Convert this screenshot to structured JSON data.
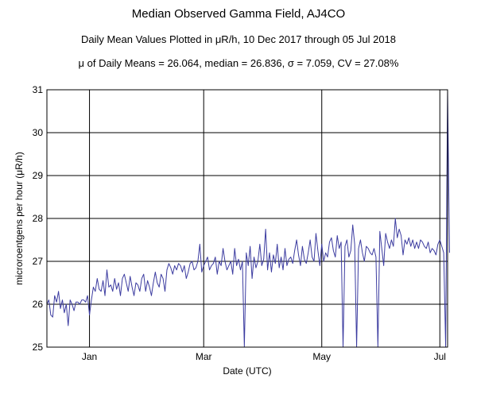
{
  "chart_data": {
    "type": "line",
    "title": "Median Observed Gamma Field, AJ4CO",
    "subtitle": "Daily Mean Values Plotted in μR/h, 10 Dec 2017 through 05 Jul 2018",
    "stats_line": "μ of Daily Means = 26.064,   median = 26.836,   σ = 7.059,   CV = 27.08%",
    "xlabel": "Date (UTC)",
    "ylabel": "microroentgens per hour (μR/h)",
    "x_range": [
      "2017-12-10",
      "2018-07-05"
    ],
    "ylim": [
      25,
      31
    ],
    "y_ticks": [
      25,
      26,
      27,
      28,
      29,
      30,
      31
    ],
    "x_ticks": [
      {
        "date": "2018-01-01",
        "label": "Jan"
      },
      {
        "date": "2018-03-01",
        "label": "Mar"
      },
      {
        "date": "2018-05-01",
        "label": "May"
      },
      {
        "date": "2018-07-01",
        "label": "Jul"
      }
    ],
    "grid": true,
    "line_color": "#3c3ca0",
    "series": [
      {
        "start_date": "2017-12-10",
        "values": [
          26.0,
          26.1,
          25.75,
          25.7,
          26.2,
          26.05,
          26.3,
          25.9,
          26.1,
          25.8,
          26.0,
          25.5,
          26.1,
          26.0,
          25.85,
          26.05,
          26.05,
          26.0,
          26.1,
          26.1,
          26.05,
          26.2,
          25.75,
          26.1,
          26.4,
          26.3,
          26.6,
          26.35,
          26.3,
          26.55,
          26.2,
          26.8,
          26.4,
          26.45,
          26.3,
          26.6,
          26.35,
          26.5,
          26.2,
          26.6,
          26.7,
          26.5,
          26.3,
          26.65,
          26.4,
          26.2,
          26.5,
          26.45,
          26.3,
          26.6,
          26.7,
          26.3,
          26.55,
          26.4,
          26.2,
          26.5,
          26.75,
          26.5,
          26.4,
          26.7,
          26.6,
          26.3,
          26.8,
          26.95,
          26.85,
          26.7,
          26.9,
          26.8,
          26.95,
          26.9,
          26.75,
          26.9,
          26.6,
          26.75,
          26.95,
          27.0,
          26.8,
          26.85,
          27.0,
          27.4,
          26.75,
          26.9,
          27.0,
          27.1,
          26.8,
          26.9,
          26.95,
          27.1,
          26.7,
          27.0,
          26.9,
          27.3,
          27.0,
          26.8,
          26.9,
          27.0,
          26.7,
          27.3,
          26.9,
          27.05,
          26.8,
          27.0,
          25.0,
          27.2,
          26.9,
          27.35,
          26.6,
          27.1,
          26.85,
          27.0,
          27.4,
          26.9,
          27.05,
          27.75,
          26.8,
          27.2,
          26.75,
          27.15,
          26.95,
          27.4,
          26.85,
          27.1,
          26.8,
          27.3,
          26.9,
          27.05,
          27.1,
          26.95,
          27.25,
          27.5,
          27.15,
          26.9,
          27.35,
          27.05,
          26.95,
          27.2,
          27.5,
          27.1,
          27.0,
          27.65,
          27.25,
          26.9,
          27.4,
          27.0,
          27.2,
          27.1,
          27.45,
          27.55,
          27.25,
          27.1,
          27.6,
          27.3,
          27.45,
          25.0,
          27.35,
          27.5,
          27.1,
          27.25,
          27.85,
          27.4,
          25.0,
          27.3,
          27.5,
          27.2,
          27.0,
          27.35,
          27.3,
          27.2,
          27.15,
          27.3,
          27.1,
          25.0,
          27.7,
          27.3,
          26.9,
          27.65,
          27.45,
          27.3,
          27.5,
          27.35,
          28.0,
          27.55,
          27.75,
          27.6,
          27.15,
          27.5,
          27.4,
          27.55,
          27.35,
          27.5,
          27.3,
          27.45,
          27.3,
          27.5,
          27.45,
          27.35,
          27.3,
          27.45,
          27.2,
          27.3,
          27.25,
          27.15,
          27.4,
          27.5,
          27.35,
          27.2,
          25.0,
          31.0,
          27.2
        ]
      }
    ]
  }
}
